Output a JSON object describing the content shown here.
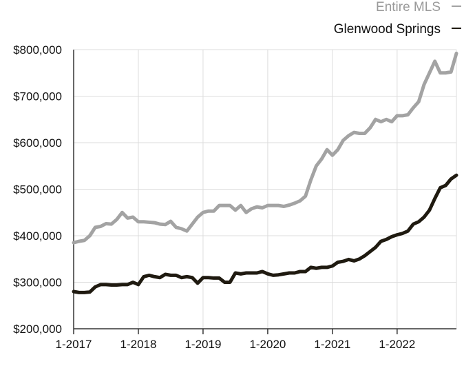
{
  "chart_data": {
    "type": "line",
    "title": "",
    "xlabel": "",
    "ylabel": "",
    "x": [
      "2017-01",
      "2017-02",
      "2017-03",
      "2017-04",
      "2017-05",
      "2017-06",
      "2017-07",
      "2017-08",
      "2017-09",
      "2017-10",
      "2017-11",
      "2017-12",
      "2018-01",
      "2018-02",
      "2018-03",
      "2018-04",
      "2018-05",
      "2018-06",
      "2018-07",
      "2018-08",
      "2018-09",
      "2018-10",
      "2018-11",
      "2018-12",
      "2019-01",
      "2019-02",
      "2019-03",
      "2019-04",
      "2019-05",
      "2019-06",
      "2019-07",
      "2019-08",
      "2019-09",
      "2019-10",
      "2019-11",
      "2019-12",
      "2020-01",
      "2020-02",
      "2020-03",
      "2020-04",
      "2020-05",
      "2020-06",
      "2020-07",
      "2020-08",
      "2020-09",
      "2020-10",
      "2020-11",
      "2020-12",
      "2021-01",
      "2021-02",
      "2021-03",
      "2021-04",
      "2021-05",
      "2021-06",
      "2021-07",
      "2021-08",
      "2021-09",
      "2021-10",
      "2021-11",
      "2021-12",
      "2022-01",
      "2022-02",
      "2022-03",
      "2022-04",
      "2022-05",
      "2022-06",
      "2022-07",
      "2022-08",
      "2022-09",
      "2022-10",
      "2022-11",
      "2022-12"
    ],
    "xticks": [
      "1-2017",
      "1-2018",
      "1-2019",
      "1-2020",
      "1-2021",
      "1-2022"
    ],
    "yticks": [
      "$200,000",
      "$300,000",
      "$400,000",
      "$500,000",
      "$600,000",
      "$700,000",
      "$800,000"
    ],
    "ylim": [
      200000,
      800000
    ],
    "grid": true,
    "legend_position": "top-right",
    "series": [
      {
        "name": "Entire MLS",
        "color": "#a3a3a3",
        "values": [
          385000,
          388000,
          390000,
          400000,
          418000,
          420000,
          426000,
          425000,
          435000,
          450000,
          438000,
          440000,
          430000,
          430000,
          429000,
          428000,
          425000,
          424000,
          431000,
          418000,
          415000,
          410000,
          425000,
          440000,
          450000,
          453000,
          453000,
          465000,
          465000,
          465000,
          455000,
          465000,
          450000,
          458000,
          462000,
          460000,
          465000,
          465000,
          465000,
          463000,
          466000,
          470000,
          475000,
          485000,
          520000,
          550000,
          565000,
          585000,
          573000,
          585000,
          605000,
          615000,
          622000,
          620000,
          620000,
          632000,
          650000,
          645000,
          650000,
          645000,
          658000,
          658000,
          660000,
          675000,
          688000,
          725000,
          750000,
          775000,
          750000,
          750000,
          752000,
          792000
        ]
      },
      {
        "name": "Glenwood Springs",
        "color": "#1f1a10",
        "values": [
          280000,
          278000,
          278000,
          279000,
          290000,
          295000,
          295000,
          294000,
          294000,
          295000,
          295000,
          300000,
          295000,
          312000,
          315000,
          312000,
          310000,
          317000,
          315000,
          315000,
          310000,
          312000,
          310000,
          298000,
          310000,
          310000,
          309000,
          309000,
          300000,
          300000,
          320000,
          318000,
          320000,
          320000,
          320000,
          323000,
          318000,
          315000,
          316000,
          318000,
          320000,
          320000,
          323000,
          323000,
          332000,
          330000,
          332000,
          332000,
          335000,
          343000,
          345000,
          349000,
          346000,
          350000,
          357000,
          366000,
          375000,
          388000,
          392000,
          398000,
          402000,
          405000,
          410000,
          425000,
          430000,
          440000,
          455000,
          480000,
          503000,
          508000,
          522000,
          530000
        ]
      }
    ]
  }
}
